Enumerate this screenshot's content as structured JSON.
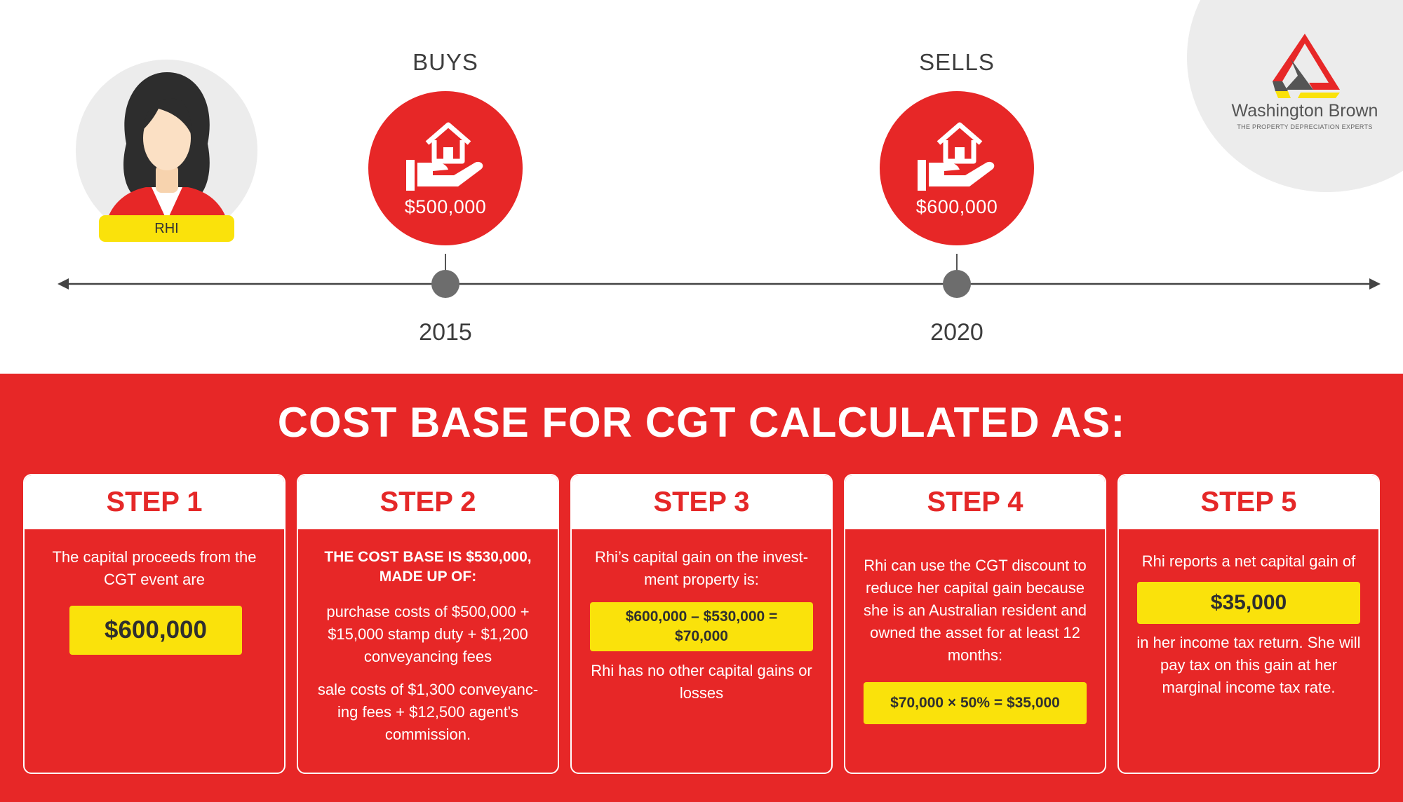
{
  "brand": {
    "name": "Washington Brown",
    "tagline": "THE PROPERTY DEPRECIATION EXPERTS",
    "colors": {
      "red": "#e72727",
      "yellow": "#fae20b",
      "grey": "#6d6d6d"
    }
  },
  "person": {
    "name": "RHI"
  },
  "timeline": {
    "events": [
      {
        "label": "BUYS",
        "price": "$500,000",
        "year": "2015",
        "icon": "hand-house-icon"
      },
      {
        "label": "SELLS",
        "price": "$600,000",
        "year": "2020",
        "icon": "hand-house-icon"
      }
    ]
  },
  "section": {
    "title": "COST BASE FOR CGT CALCULATED AS:"
  },
  "steps": [
    {
      "title": "STEP 1",
      "intro": "The capital proceeds from the CGT event are",
      "highlight": "$600,000"
    },
    {
      "title": "STEP 2",
      "heading": "THE COST BASE IS $530,000, MADE UP OF:",
      "purchase": "purchase costs of $500,000 + $15,000 stamp duty + $1,200 conveyancing fees",
      "sale": "sale costs of $1,300 conveyanc-ing fees + $12,500 agent's commission."
    },
    {
      "title": "STEP 3",
      "intro": "Rhi’s capital gain on the invest-ment property is:",
      "highlight": "$600,000 – $530,000 = $70,000",
      "note": "Rhi has no other capital gains or losses"
    },
    {
      "title": "STEP 4",
      "intro": "Rhi can use the CGT discount to reduce her capital gain because she is an Australian resident and owned the asset for at least 12 months:",
      "highlight": "$70,000 × 50% = $35,000"
    },
    {
      "title": "STEP 5",
      "intro": "Rhi reports a net capital gain of",
      "highlight": "$35,000",
      "note": "in her income tax return. She will pay tax on this gain at her marginal income tax rate."
    }
  ]
}
